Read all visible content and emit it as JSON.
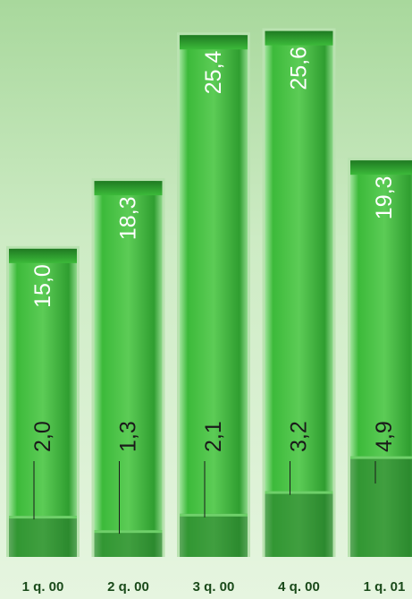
{
  "chart_data": {
    "type": "bar",
    "title": "",
    "xlabel": "",
    "ylabel": "",
    "categories": [
      "1 q. 00",
      "2 q. 00",
      "3 q. 00",
      "4 q. 00",
      "1 q. 01"
    ],
    "series": [
      {
        "values": [
          15.0,
          18.3,
          25.4,
          25.6,
          19.3
        ]
      },
      {
        "values": [
          2.0,
          1.3,
          2.1,
          3.2,
          4.9
        ]
      }
    ],
    "value_labels": [
      "15,0",
      "18,3",
      "25,4",
      "25,6",
      "19,3"
    ],
    "sub_labels": [
      "2,0",
      "1,3",
      "2,1",
      "3,2",
      "4,9"
    ],
    "ylim": [
      0,
      26.5
    ],
    "grid": false,
    "legend": "none",
    "colors": {
      "bar_light": "#7ed67a",
      "bar_mid": "#3cba3a",
      "bar_dark": "#1f8a26",
      "segment": "#2a7a2e",
      "background": "#c8e8c0"
    }
  }
}
